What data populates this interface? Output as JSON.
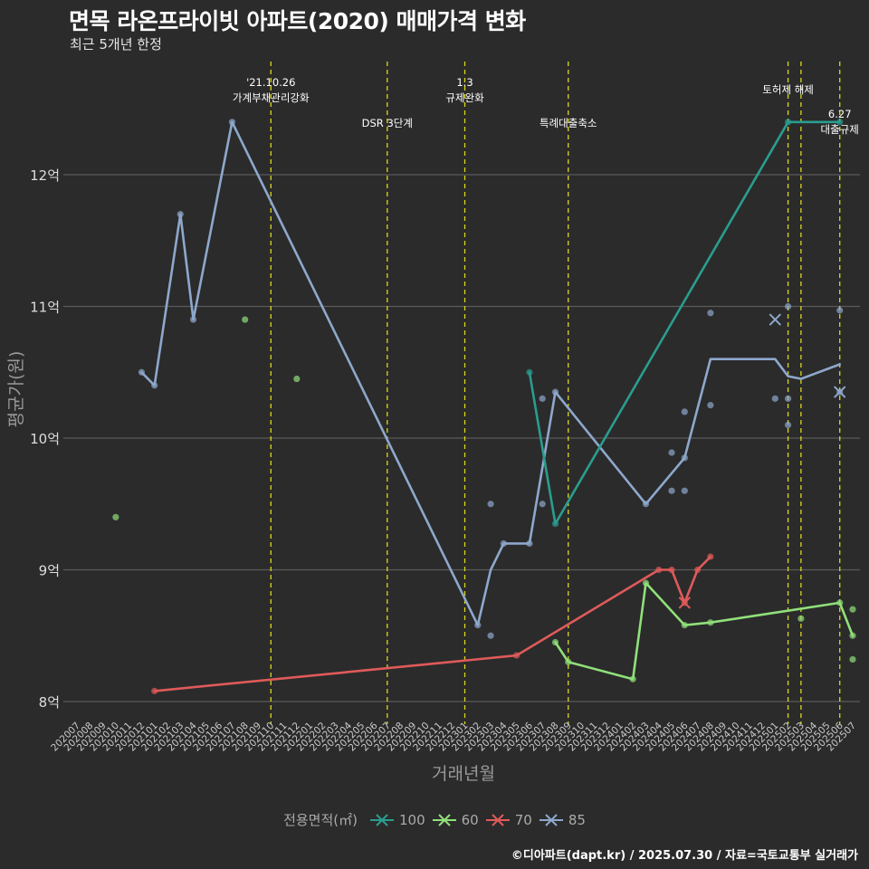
{
  "header": {
    "title": "면목 라온프라이빗 아파트(2020) 매매가격 변화",
    "subtitle": "최근 5개년 한정"
  },
  "caption": "©디아파트(dapt.kr) / 2025.07.30 / 자료=국토교통부 실거래가",
  "chart_data": {
    "type": "line",
    "xlabel": "거래년월",
    "ylabel": "평균가(원)",
    "x_categories": [
      "202007",
      "202008",
      "202009",
      "202010",
      "202011",
      "202012",
      "202101",
      "202102",
      "202103",
      "202104",
      "202105",
      "202106",
      "202107",
      "202108",
      "202109",
      "202110",
      "202111",
      "202112",
      "202201",
      "202202",
      "202203",
      "202204",
      "202205",
      "202206",
      "202207",
      "202208",
      "202209",
      "202210",
      "202211",
      "202212",
      "202301",
      "202302",
      "202303",
      "202304",
      "202305",
      "202306",
      "202307",
      "202308",
      "202309",
      "202310",
      "202311",
      "202312",
      "202401",
      "202402",
      "202403",
      "202404",
      "202405",
      "202406",
      "202407",
      "202408",
      "202409",
      "202410",
      "202411",
      "202412",
      "202501",
      "202502",
      "202503",
      "202504",
      "202505",
      "202506",
      "202507"
    ],
    "y_ticks": [
      8,
      9,
      10,
      11,
      12
    ],
    "y_tick_labels": [
      "8억",
      "9억",
      "10억",
      "11억",
      "12억"
    ],
    "ylim": [
      7.9,
      12.7
    ],
    "grid": true,
    "legend": {
      "title": "전용면적(㎡)",
      "placement": "bottom",
      "entries": [
        "100",
        "60",
        "70",
        "85"
      ]
    },
    "colors": {
      "100": "#2a9d8f",
      "60": "#90e07a",
      "70": "#e05a5a",
      "85": "#8ea8cc",
      "background": "#2b2b2b",
      "grid": "#5a5a5a",
      "vline": "#d8d820"
    },
    "series": [
      {
        "name": "100",
        "line": [
          [
            "202306",
            10.5
          ],
          [
            "202308",
            9.35
          ],
          [
            "202502",
            12.4
          ],
          [
            "202506",
            12.4
          ]
        ],
        "points": [
          [
            "202306",
            10.5
          ],
          [
            "202308",
            9.35
          ],
          [
            "202502",
            12.4
          ],
          [
            "202506",
            12.4
          ]
        ]
      },
      {
        "name": "60",
        "line": [
          [
            "202308",
            8.45
          ],
          [
            "202309",
            8.3
          ],
          [
            "202402",
            8.17
          ],
          [
            "202403",
            8.9
          ],
          [
            "202406",
            8.58
          ],
          [
            "202408",
            8.6
          ],
          [
            "202506",
            8.75
          ],
          [
            "202507",
            8.5
          ]
        ],
        "points": [
          [
            "202010",
            9.4
          ],
          [
            "202108",
            10.9
          ],
          [
            "202112",
            10.45
          ],
          [
            "202308",
            8.45
          ],
          [
            "202309",
            8.3
          ],
          [
            "202402",
            8.17
          ],
          [
            "202403",
            8.9
          ],
          [
            "202406",
            8.58
          ],
          [
            "202408",
            8.6
          ],
          [
            "202503",
            8.63
          ],
          [
            "202506",
            8.75
          ],
          [
            "202507",
            8.7
          ],
          [
            "202507",
            8.5
          ],
          [
            "202507",
            8.32
          ]
        ]
      },
      {
        "name": "70",
        "line": [
          [
            "202101",
            8.08
          ],
          [
            "202305",
            8.35
          ],
          [
            "202404",
            9.0
          ],
          [
            "202405",
            9.0
          ],
          [
            "202406",
            8.75
          ],
          [
            "202407",
            9.0
          ],
          [
            "202408",
            9.1
          ]
        ],
        "points": [
          [
            "202101",
            8.08
          ],
          [
            "202305",
            8.35
          ],
          [
            "202404",
            9.0
          ],
          [
            "202405",
            9.0
          ],
          [
            "202406",
            8.75
          ],
          [
            "202407",
            9.0
          ],
          [
            "202408",
            9.1
          ]
        ]
      },
      {
        "name": "85",
        "line": [
          [
            "202012",
            10.5
          ],
          [
            "202101",
            10.4
          ],
          [
            "202103",
            11.7
          ],
          [
            "202104",
            10.9
          ],
          [
            "202107",
            12.4
          ],
          [
            "202302",
            8.58
          ],
          [
            "202303",
            9.0
          ],
          [
            "202304",
            9.2
          ],
          [
            "202306",
            9.2
          ],
          [
            "202308",
            10.35
          ],
          [
            "202403",
            9.5
          ],
          [
            "202406",
            9.85
          ],
          [
            "202408",
            10.6
          ],
          [
            "202501",
            10.6
          ],
          [
            "202502",
            10.47
          ],
          [
            "202503",
            10.45
          ],
          [
            "202506",
            10.56
          ]
        ],
        "points": [
          [
            "202012",
            10.5
          ],
          [
            "202101",
            10.4
          ],
          [
            "202103",
            11.7
          ],
          [
            "202104",
            10.9
          ],
          [
            "202107",
            12.4
          ],
          [
            "202302",
            8.58
          ],
          [
            "202303",
            9.5
          ],
          [
            "202303",
            8.5
          ],
          [
            "202304",
            9.2
          ],
          [
            "202306",
            9.2
          ],
          [
            "202307",
            10.3
          ],
          [
            "202307",
            9.5
          ],
          [
            "202308",
            10.35
          ],
          [
            "202403",
            9.5
          ],
          [
            "202405",
            9.6
          ],
          [
            "202405",
            9.89
          ],
          [
            "202406",
            9.6
          ],
          [
            "202406",
            9.85
          ],
          [
            "202406",
            10.2
          ],
          [
            "202408",
            10.95
          ],
          [
            "202408",
            10.25
          ],
          [
            "202501",
            10.3
          ],
          [
            "202502",
            11.0
          ],
          [
            "202502",
            10.3
          ],
          [
            "202502",
            10.1
          ],
          [
            "202506",
            10.97
          ],
          [
            "202506",
            10.35
          ]
        ]
      }
    ],
    "x_markers": [
      {
        "series": "85",
        "x": "202501",
        "y": 10.9
      },
      {
        "series": "85",
        "x": "202506",
        "y": 10.35
      },
      {
        "series": "70",
        "x": "202406",
        "y": 8.75
      }
    ],
    "annotations": [
      {
        "x": "202110",
        "lines": [
          "'21.10.26",
          "가계부채관리강화"
        ],
        "row": 0
      },
      {
        "x": "202207",
        "lines": [
          "DSR 3단계"
        ],
        "row": 1
      },
      {
        "x": "202301",
        "lines": [
          "1.3",
          "규제완화"
        ],
        "row": 0
      },
      {
        "x": "202309",
        "lines": [
          "특례대출축소"
        ],
        "row": 1
      },
      {
        "x": "202502",
        "lines": [
          "토허제 해제"
        ],
        "row": 0.5
      },
      {
        "x": "202503",
        "lines": [],
        "row": 0
      },
      {
        "x": "202506",
        "lines": [
          "6.27",
          "대출규제"
        ],
        "row": 1
      }
    ]
  }
}
